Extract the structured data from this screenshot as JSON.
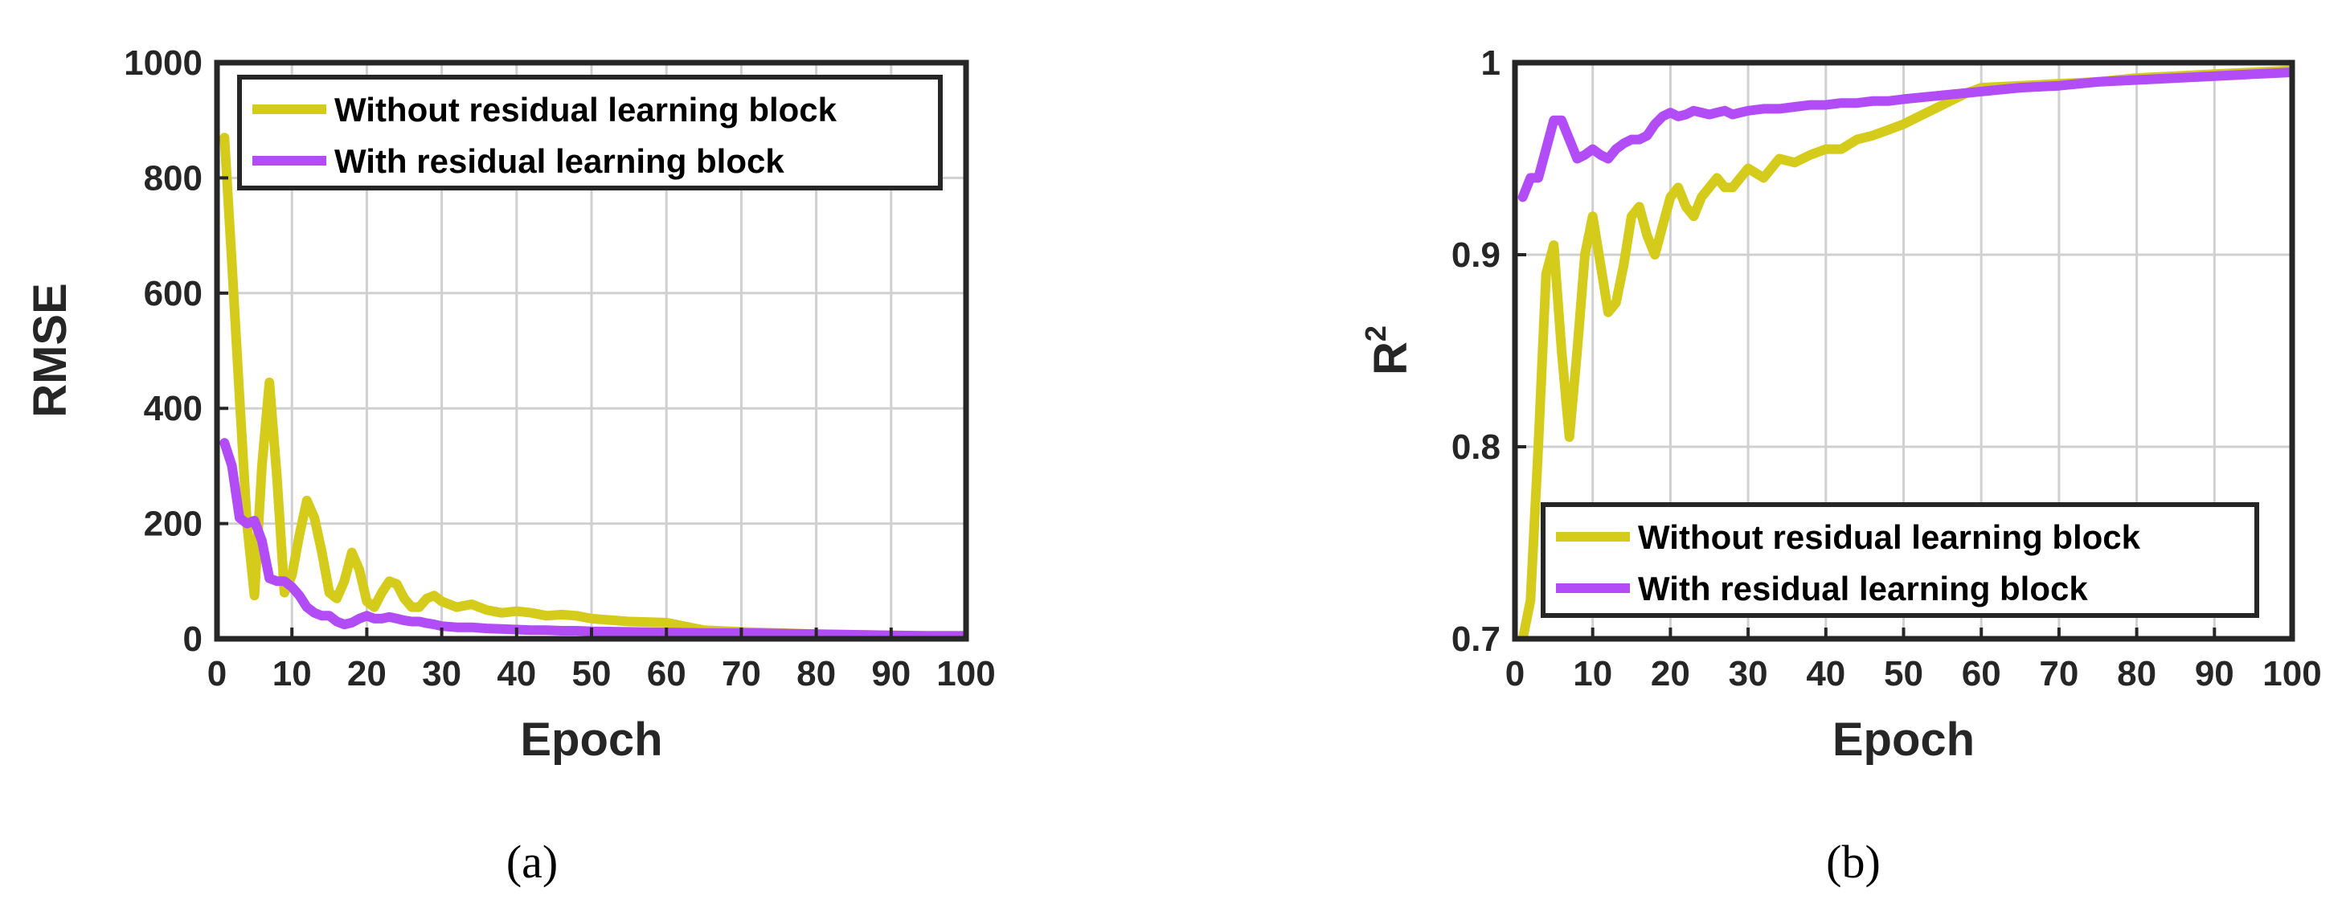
{
  "colors": {
    "without": "#d4cb1a",
    "with": "#b14cf7"
  },
  "chart_data": [
    {
      "type": "line",
      "caption": "(a)",
      "xlabel": "Epoch",
      "ylabel": "RMSE",
      "xlim": [
        0,
        100
      ],
      "ylim": [
        0,
        1000
      ],
      "xticks": [
        "0",
        "10",
        "20",
        "30",
        "40",
        "50",
        "60",
        "70",
        "80",
        "90",
        "100"
      ],
      "yticks": [
        "0",
        "200",
        "400",
        "600",
        "800",
        "1000"
      ],
      "grid": true,
      "legend_position": "top-right",
      "series": [
        {
          "name": "Without residual learning block",
          "color_key": "without",
          "x": [
            1,
            2,
            3,
            4,
            5,
            6,
            7,
            8,
            9,
            10,
            11,
            12,
            13,
            14,
            15,
            16,
            17,
            18,
            19,
            20,
            21,
            22,
            23,
            24,
            25,
            26,
            27,
            28,
            29,
            30,
            32,
            34,
            36,
            38,
            40,
            42,
            44,
            46,
            48,
            50,
            55,
            60,
            65,
            70,
            75,
            80,
            85,
            90,
            95,
            100
          ],
          "y": [
            870,
            650,
            420,
            200,
            75,
            300,
            445,
            280,
            80,
            110,
            180,
            240,
            210,
            150,
            80,
            70,
            100,
            150,
            120,
            65,
            55,
            80,
            100,
            95,
            70,
            55,
            55,
            70,
            75,
            65,
            55,
            60,
            50,
            45,
            48,
            45,
            40,
            42,
            40,
            35,
            30,
            28,
            15,
            12,
            10,
            8,
            7,
            6,
            5,
            5
          ]
        },
        {
          "name": "With residual learning block",
          "color_key": "with",
          "x": [
            1,
            2,
            3,
            4,
            5,
            6,
            7,
            8,
            9,
            10,
            11,
            12,
            13,
            14,
            15,
            16,
            17,
            18,
            19,
            20,
            21,
            22,
            23,
            24,
            25,
            26,
            27,
            28,
            29,
            30,
            32,
            34,
            36,
            38,
            40,
            42,
            44,
            46,
            48,
            50,
            55,
            60,
            65,
            70,
            75,
            80,
            85,
            90,
            95,
            100
          ],
          "y": [
            340,
            300,
            210,
            200,
            205,
            170,
            105,
            100,
            100,
            90,
            75,
            55,
            45,
            40,
            40,
            30,
            25,
            28,
            35,
            40,
            35,
            35,
            38,
            35,
            32,
            30,
            30,
            27,
            25,
            22,
            20,
            20,
            18,
            17,
            16,
            15,
            15,
            14,
            14,
            13,
            12,
            11,
            10,
            10,
            9,
            8,
            7,
            6,
            5,
            5
          ]
        }
      ]
    },
    {
      "type": "line",
      "caption": "(b)",
      "xlabel": "Epoch",
      "ylabel": "R",
      "ylabel_sup": "2",
      "xlim": [
        0,
        100
      ],
      "ylim": [
        0.7,
        1
      ],
      "xticks": [
        "0",
        "10",
        "20",
        "30",
        "40",
        "50",
        "60",
        "70",
        "80",
        "90",
        "100"
      ],
      "yticks": [
        "0.7",
        "0.8",
        "0.9",
        "1"
      ],
      "grid": true,
      "legend_position": "bottom-right",
      "series": [
        {
          "name": "Without residual learning block",
          "color_key": "without",
          "x": [
            1,
            2,
            3,
            4,
            5,
            6,
            7,
            8,
            9,
            10,
            11,
            12,
            13,
            14,
            15,
            16,
            17,
            18,
            19,
            20,
            21,
            22,
            23,
            24,
            25,
            26,
            27,
            28,
            29,
            30,
            32,
            34,
            36,
            38,
            40,
            42,
            44,
            46,
            48,
            50,
            52,
            54,
            56,
            58,
            60,
            65,
            70,
            75,
            80,
            85,
            90,
            95,
            100
          ],
          "y": [
            0.7,
            0.72,
            0.8,
            0.89,
            0.905,
            0.85,
            0.805,
            0.85,
            0.9,
            0.92,
            0.895,
            0.87,
            0.875,
            0.895,
            0.92,
            0.925,
            0.91,
            0.9,
            0.915,
            0.93,
            0.935,
            0.925,
            0.92,
            0.93,
            0.935,
            0.94,
            0.935,
            0.935,
            0.94,
            0.945,
            0.94,
            0.95,
            0.948,
            0.952,
            0.955,
            0.955,
            0.96,
            0.962,
            0.965,
            0.968,
            0.972,
            0.976,
            0.98,
            0.984,
            0.987,
            0.988,
            0.989,
            0.99,
            0.992,
            0.993,
            0.994,
            0.995,
            0.996
          ]
        },
        {
          "name": "With residual learning block",
          "color_key": "with",
          "x": [
            1,
            2,
            3,
            4,
            5,
            6,
            7,
            8,
            9,
            10,
            11,
            12,
            13,
            14,
            15,
            16,
            17,
            18,
            19,
            20,
            21,
            22,
            23,
            24,
            25,
            26,
            27,
            28,
            29,
            30,
            32,
            34,
            36,
            38,
            40,
            42,
            44,
            46,
            48,
            50,
            55,
            60,
            65,
            70,
            75,
            80,
            85,
            90,
            95,
            100
          ],
          "y": [
            0.93,
            0.94,
            0.94,
            0.955,
            0.97,
            0.97,
            0.96,
            0.95,
            0.952,
            0.955,
            0.952,
            0.95,
            0.955,
            0.958,
            0.96,
            0.96,
            0.962,
            0.968,
            0.972,
            0.974,
            0.972,
            0.973,
            0.975,
            0.974,
            0.973,
            0.974,
            0.975,
            0.973,
            0.974,
            0.975,
            0.976,
            0.976,
            0.977,
            0.978,
            0.978,
            0.979,
            0.979,
            0.98,
            0.98,
            0.981,
            0.983,
            0.985,
            0.987,
            0.988,
            0.99,
            0.991,
            0.992,
            0.993,
            0.994,
            0.995
          ]
        }
      ]
    }
  ]
}
